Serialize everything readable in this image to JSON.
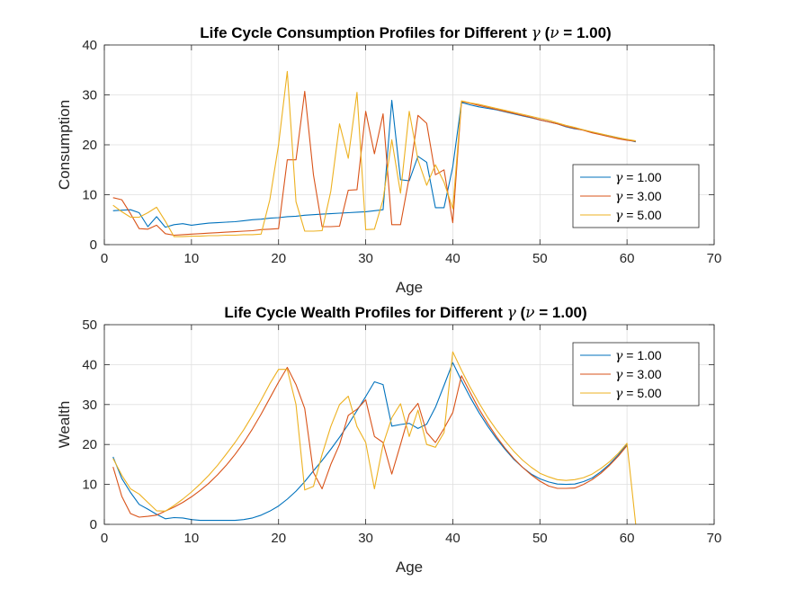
{
  "chart_data": [
    {
      "type": "line",
      "title": "Life Cycle Consumption Profiles for Different γ (ν = 1.00)",
      "xlabel": "Age",
      "ylabel": "Consumption",
      "xlim": [
        0,
        70
      ],
      "ylim": [
        0,
        40
      ],
      "xticks": [
        0,
        10,
        20,
        30,
        40,
        50,
        60,
        70
      ],
      "yticks": [
        0,
        10,
        20,
        30,
        40
      ],
      "grid": true,
      "legend_position": "right",
      "x": [
        1,
        2,
        3,
        4,
        5,
        6,
        7,
        8,
        9,
        10,
        11,
        12,
        13,
        14,
        15,
        16,
        17,
        18,
        19,
        20,
        21,
        22,
        23,
        24,
        25,
        26,
        27,
        28,
        29,
        30,
        31,
        32,
        33,
        34,
        35,
        36,
        37,
        38,
        39,
        40,
        41,
        42,
        43,
        44,
        45,
        46,
        47,
        48,
        49,
        50,
        51,
        52,
        53,
        54,
        55,
        56,
        57,
        58,
        59,
        60,
        61
      ],
      "series": [
        {
          "name": "γ = 1.00",
          "color": "#0072BD",
          "values": [
            6.8,
            6.9,
            7.0,
            6.4,
            3.6,
            5.6,
            3.5,
            4.0,
            4.2,
            3.9,
            4.1,
            4.3,
            4.4,
            4.5,
            4.6,
            4.8,
            5.0,
            5.1,
            5.3,
            5.4,
            5.6,
            5.7,
            5.9,
            6.0,
            6.1,
            6.2,
            6.3,
            6.4,
            6.5,
            6.6,
            6.8,
            7.0,
            28.9,
            13.0,
            12.8,
            17.7,
            16.5,
            7.4,
            7.4,
            15.6,
            28.5,
            28.0,
            27.6,
            27.3,
            27.0,
            26.6,
            26.2,
            25.8,
            25.4,
            25.0,
            24.6,
            24.2,
            23.6,
            23.2,
            23.0,
            22.5,
            22.1,
            21.8,
            21.4,
            21.0,
            20.6
          ]
        },
        {
          "name": "γ = 3.00",
          "color": "#D95319",
          "values": [
            9.4,
            9.0,
            6.2,
            3.2,
            3.1,
            3.9,
            2.2,
            1.9,
            2.0,
            2.1,
            2.2,
            2.3,
            2.4,
            2.5,
            2.6,
            2.7,
            2.8,
            3.0,
            3.1,
            3.2,
            17.0,
            17.0,
            30.7,
            14.0,
            3.6,
            3.6,
            3.7,
            10.9,
            11.0,
            26.7,
            18.2,
            26.2,
            4.0,
            4.0,
            13.5,
            25.9,
            24.3,
            14.0,
            15.0,
            4.4,
            28.7,
            28.3,
            27.9,
            27.5,
            27.1,
            26.7,
            26.3,
            25.9,
            25.5,
            25.0,
            24.6,
            24.2,
            23.7,
            23.3,
            22.9,
            22.4,
            22.0,
            21.6,
            21.2,
            20.9,
            20.7
          ]
        },
        {
          "name": "γ = 5.00",
          "color": "#EDB120",
          "values": [
            7.9,
            6.6,
            5.5,
            5.5,
            6.4,
            7.5,
            4.7,
            1.6,
            1.6,
            1.7,
            1.7,
            1.8,
            1.8,
            1.9,
            1.9,
            2.0,
            2.0,
            2.1,
            9.0,
            20.0,
            34.7,
            8.6,
            2.7,
            2.7,
            2.8,
            10.7,
            24.2,
            17.3,
            30.5,
            3.0,
            3.1,
            9.0,
            21.0,
            10.3,
            26.7,
            17.0,
            11.9,
            16.0,
            12.5,
            7.2,
            28.8,
            28.4,
            28.1,
            27.7,
            27.3,
            26.9,
            26.5,
            26.1,
            25.7,
            25.3,
            24.9,
            24.4,
            23.9,
            23.5,
            23.0,
            22.6,
            22.2,
            21.8,
            21.4,
            21.1,
            20.8
          ]
        }
      ]
    },
    {
      "type": "line",
      "title": "Life Cycle Wealth Profiles for Different γ (ν = 1.00)",
      "xlabel": "Age",
      "ylabel": "Wealth",
      "xlim": [
        0,
        70
      ],
      "ylim": [
        0,
        50
      ],
      "xticks": [
        0,
        10,
        20,
        30,
        40,
        50,
        60,
        70
      ],
      "yticks": [
        0,
        10,
        20,
        30,
        40,
        50
      ],
      "grid": true,
      "legend_position": "top-right",
      "x": [
        1,
        2,
        3,
        4,
        5,
        6,
        7,
        8,
        9,
        10,
        11,
        12,
        13,
        14,
        15,
        16,
        17,
        18,
        19,
        20,
        21,
        22,
        23,
        24,
        25,
        26,
        27,
        28,
        29,
        30,
        31,
        32,
        33,
        34,
        35,
        36,
        37,
        38,
        39,
        40,
        41,
        42,
        43,
        44,
        45,
        46,
        47,
        48,
        49,
        50,
        51,
        52,
        53,
        54,
        55,
        56,
        57,
        58,
        59,
        60,
        61
      ],
      "series": [
        {
          "name": "γ = 1.00",
          "color": "#0072BD",
          "values": [
            16.9,
            11.5,
            8.0,
            5.0,
            3.8,
            2.5,
            1.4,
            1.7,
            1.6,
            1.2,
            1.0,
            1.0,
            1.0,
            1.0,
            1.0,
            1.2,
            1.6,
            2.3,
            3.3,
            4.6,
            6.3,
            8.3,
            10.7,
            13.4,
            16.0,
            18.8,
            21.8,
            25.0,
            28.5,
            32.0,
            35.7,
            35.0,
            24.6,
            25.0,
            25.3,
            24.0,
            25.1,
            29.3,
            34.8,
            40.5,
            36.0,
            31.8,
            28.0,
            24.6,
            21.5,
            18.8,
            16.3,
            14.3,
            12.6,
            11.4,
            10.6,
            10.1,
            10.0,
            10.1,
            10.7,
            11.6,
            13.2,
            15.1,
            17.4,
            20.1,
            null
          ]
        },
        {
          "name": "γ = 3.00",
          "color": "#D95319",
          "values": [
            14.4,
            7.0,
            2.7,
            1.8,
            2.0,
            2.3,
            3.3,
            4.3,
            5.5,
            6.9,
            8.5,
            10.3,
            12.4,
            14.8,
            17.5,
            20.5,
            23.9,
            27.6,
            31.6,
            35.6,
            39.3,
            35.0,
            29.0,
            13.0,
            8.9,
            15.0,
            20.0,
            27.3,
            28.8,
            31.2,
            22.0,
            20.5,
            12.6,
            20.0,
            27.6,
            30.3,
            23.0,
            20.5,
            24.0,
            28.0,
            37.2,
            33.0,
            28.9,
            25.3,
            22.0,
            19.1,
            16.5,
            14.3,
            12.4,
            10.8,
            9.6,
            9.0,
            9.0,
            9.1,
            10.0,
            11.2,
            12.8,
            14.8,
            17.1,
            19.7,
            null
          ]
        },
        {
          "name": "γ = 5.00",
          "color": "#EDB120",
          "values": [
            16.5,
            12.3,
            8.9,
            7.6,
            5.5,
            3.4,
            3.3,
            4.7,
            6.3,
            8.1,
            10.1,
            12.3,
            14.8,
            17.6,
            20.5,
            23.7,
            27.3,
            31.1,
            35.2,
            38.8,
            38.8,
            30.0,
            8.6,
            9.5,
            17.5,
            24.5,
            30.0,
            32.1,
            24.5,
            20.5,
            8.9,
            20.0,
            26.7,
            30.2,
            22.0,
            28.6,
            20.0,
            19.3,
            23.0,
            43.2,
            38.6,
            34.3,
            30.4,
            26.8,
            23.7,
            20.9,
            18.3,
            16.1,
            14.3,
            12.8,
            11.9,
            11.2,
            11.0,
            11.2,
            11.7,
            12.6,
            14.0,
            15.7,
            17.8,
            20.3,
            0.0
          ]
        }
      ]
    }
  ]
}
